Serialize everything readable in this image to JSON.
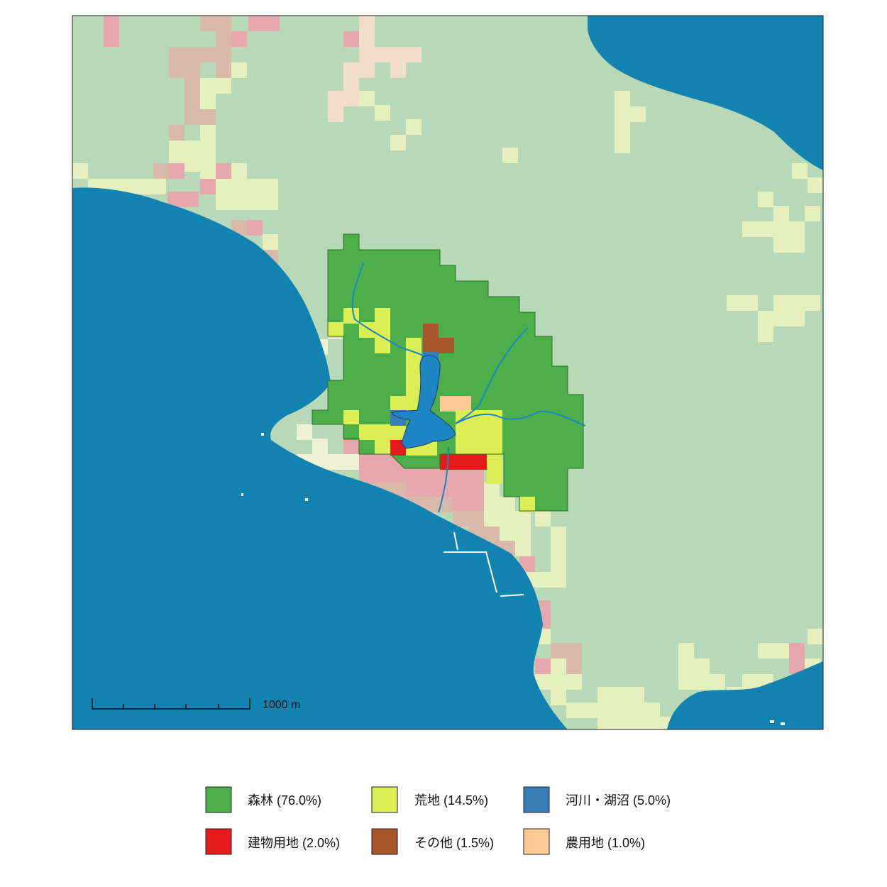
{
  "map": {
    "scale_bar": {
      "label": "1000 m"
    },
    "colors": {
      "sea": "#1283b1",
      "land_forest_bg": "#b8d9b8",
      "land_wasteland_bg": "#e6efbe",
      "land_beach": "#f0f2d6",
      "land_urban_bg": "#e6a8ac",
      "land_mixed_bg": "#d8b9aa",
      "land_farm_bg": "#f1ddc9",
      "river": "#1e85c4"
    }
  },
  "legend": {
    "items": [
      {
        "label": "森林 (76.0%)",
        "color": "#4daf4a"
      },
      {
        "label": "荒地 (14.5%)",
        "color": "#dbef54"
      },
      {
        "label": "河川・湖沼 (5.0%)",
        "color": "#377eb8"
      },
      {
        "label": "建物用地 (2.0%)",
        "color": "#e41a1c"
      },
      {
        "label": "その他 (1.5%)",
        "color": "#a65628"
      },
      {
        "label": "農用地 (1.0%)",
        "color": "#fdc995"
      }
    ]
  }
}
